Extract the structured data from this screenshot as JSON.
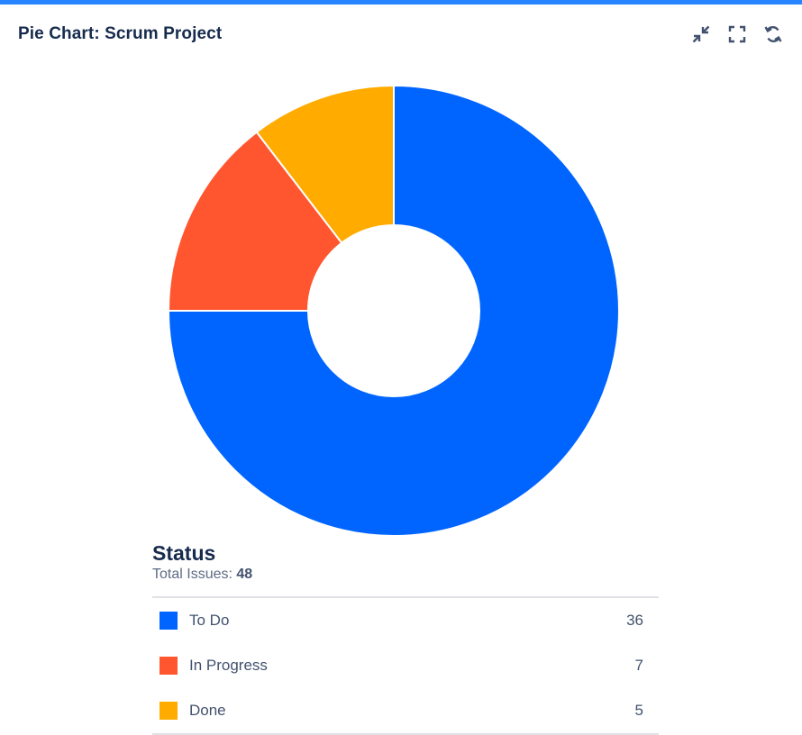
{
  "header": {
    "title": "Pie Chart: Scrum Project",
    "icons": [
      "minimize-icon",
      "fullscreen-icon",
      "refresh-icon"
    ]
  },
  "colors": {
    "accent": "#2684ff",
    "to_do": "#0065ff",
    "in_progress": "#ff5630",
    "done": "#ffab00"
  },
  "legend": {
    "title": "Status",
    "total_label": "Total Issues: ",
    "total_value": "48"
  },
  "chart_data": {
    "type": "pie",
    "variant": "donut",
    "title": "",
    "categories": [
      "To Do",
      "In Progress",
      "Done"
    ],
    "values": [
      36,
      7,
      5
    ],
    "colors": [
      "#0065ff",
      "#ff5630",
      "#ffab00"
    ],
    "total": 48,
    "legend_position": "bottom"
  }
}
